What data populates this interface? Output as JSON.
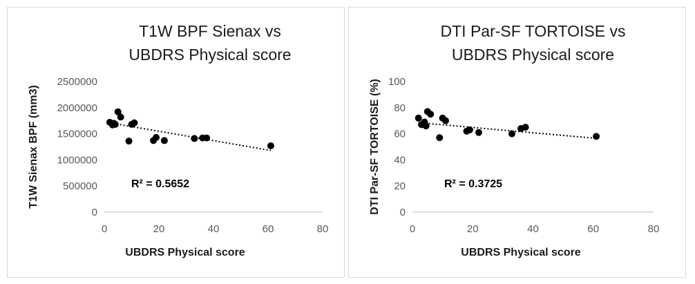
{
  "chart_data": [
    {
      "type": "scatter",
      "title": [
        "T1W BPF Sienax  vs",
        "UBDRS Physical score"
      ],
      "xlabel": "UBDRS Physical score",
      "ylabel": "T1W Sienax BPF (mm3)",
      "xlim": [
        0,
        80
      ],
      "ylim": [
        0,
        2500000
      ],
      "x_ticks": [
        "0",
        "20",
        "40",
        "60",
        "80"
      ],
      "y_ticks": [
        "0",
        "500000",
        "1000000",
        "1500000",
        "2000000",
        "2500000"
      ],
      "points": [
        {
          "x": 2,
          "y": 1720000
        },
        {
          "x": 3,
          "y": 1670000
        },
        {
          "x": 3.5,
          "y": 1700000
        },
        {
          "x": 4,
          "y": 1680000
        },
        {
          "x": 5,
          "y": 1920000
        },
        {
          "x": 6,
          "y": 1820000
        },
        {
          "x": 9,
          "y": 1360000
        },
        {
          "x": 10,
          "y": 1680000
        },
        {
          "x": 11,
          "y": 1710000
        },
        {
          "x": 18,
          "y": 1370000
        },
        {
          "x": 19,
          "y": 1430000
        },
        {
          "x": 22,
          "y": 1370000
        },
        {
          "x": 33,
          "y": 1410000
        },
        {
          "x": 36,
          "y": 1420000
        },
        {
          "x": 37.5,
          "y": 1420000
        },
        {
          "x": 61,
          "y": 1270000
        }
      ],
      "trendline": {
        "type": "linear",
        "x": [
          2,
          61
        ],
        "y": [
          1710000,
          1180000
        ]
      },
      "annotation": "R² = 0.5652"
    },
    {
      "type": "scatter",
      "title": [
        "DTI Par-SF TORTOISE vs",
        "UBDRS Physical score"
      ],
      "xlabel": "UBDRS Physical score",
      "ylabel": "DTI Par-SF TORTOISE (%)",
      "xlim": [
        0,
        80
      ],
      "ylim": [
        0,
        100
      ],
      "x_ticks": [
        "0",
        "20",
        "40",
        "60",
        "80"
      ],
      "y_ticks": [
        "0",
        "20",
        "40",
        "60",
        "80",
        "100"
      ],
      "points": [
        {
          "x": 2,
          "y": 72
        },
        {
          "x": 3,
          "y": 67
        },
        {
          "x": 4,
          "y": 69
        },
        {
          "x": 4.5,
          "y": 66
        },
        {
          "x": 5,
          "y": 77
        },
        {
          "x": 6,
          "y": 75
        },
        {
          "x": 9,
          "y": 57
        },
        {
          "x": 10,
          "y": 72
        },
        {
          "x": 11,
          "y": 70
        },
        {
          "x": 18,
          "y": 62
        },
        {
          "x": 19,
          "y": 63
        },
        {
          "x": 22,
          "y": 61
        },
        {
          "x": 33,
          "y": 60
        },
        {
          "x": 36,
          "y": 64
        },
        {
          "x": 37.5,
          "y": 65
        },
        {
          "x": 61,
          "y": 58
        }
      ],
      "trendline": {
        "type": "linear",
        "x": [
          2,
          61
        ],
        "y": [
          68.5,
          56.5
        ]
      },
      "annotation": "R² = 0.3725"
    }
  ],
  "colors": {
    "marker": "#000000",
    "trendline": "#000000",
    "gridline": "#d9d9d9",
    "axis": "#bfbfbf"
  }
}
